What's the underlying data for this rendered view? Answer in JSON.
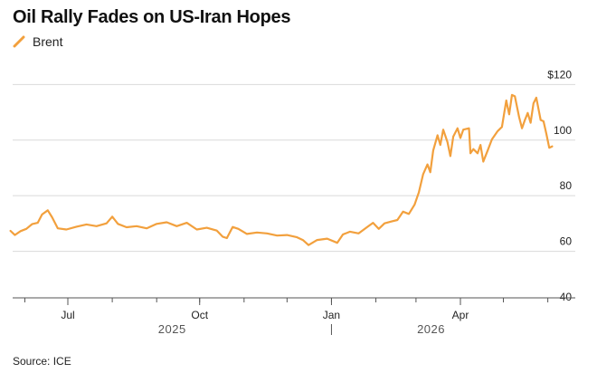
{
  "title": "Oil Rally Fades on US-Iran Hopes",
  "source": "Source: ICE",
  "colors": {
    "series": "#f2a03d",
    "grid": "#d9d9d9",
    "axis": "#555555"
  },
  "chart_data": {
    "type": "line",
    "title": "Oil Rally Fades on US-Iran Hopes",
    "xlabel": "",
    "ylabel": "",
    "ylim": [
      40,
      125
    ],
    "grid": true,
    "legend": "top-left",
    "y_ticks": [
      {
        "value": 120,
        "label": "$120"
      },
      {
        "value": 100,
        "label": "100"
      },
      {
        "value": 80,
        "label": "80"
      },
      {
        "value": 60,
        "label": "60"
      },
      {
        "value": 40,
        "label": "40"
      }
    ],
    "x_ticks": [
      {
        "date": "2025-07-01",
        "label": "Jul"
      },
      {
        "date": "2025-10-01",
        "label": "Oct"
      },
      {
        "date": "2026-01-01",
        "label": "Jan"
      },
      {
        "date": "2026-04-01",
        "label": "Apr"
      }
    ],
    "year_labels": [
      {
        "year": "2025",
        "from": "2025-05-20",
        "to": "2026-01-01"
      },
      {
        "year": "2026",
        "from": "2026-01-01",
        "to": "2026-05-20"
      }
    ],
    "x_range": [
      "2025-05-20",
      "2026-06-12"
    ],
    "series": [
      {
        "name": "Brent",
        "points": [
          [
            "2025-05-22",
            64.1
          ],
          [
            "2025-05-25",
            62.6
          ],
          [
            "2025-05-29",
            64.0
          ],
          [
            "2025-06-02",
            64.8
          ],
          [
            "2025-06-06",
            66.5
          ],
          [
            "2025-06-10",
            67.0
          ],
          [
            "2025-06-13",
            70.0
          ],
          [
            "2025-06-17",
            71.5
          ],
          [
            "2025-06-20",
            69.0
          ],
          [
            "2025-06-24",
            65.0
          ],
          [
            "2025-06-30",
            64.6
          ],
          [
            "2025-07-07",
            65.6
          ],
          [
            "2025-07-14",
            66.4
          ],
          [
            "2025-07-21",
            65.8
          ],
          [
            "2025-07-28",
            66.8
          ],
          [
            "2025-08-01",
            69.2
          ],
          [
            "2025-08-05",
            66.6
          ],
          [
            "2025-08-11",
            65.4
          ],
          [
            "2025-08-18",
            65.8
          ],
          [
            "2025-08-25",
            65.0
          ],
          [
            "2025-09-01",
            66.6
          ],
          [
            "2025-09-08",
            67.2
          ],
          [
            "2025-09-15",
            65.8
          ],
          [
            "2025-09-22",
            67.0
          ],
          [
            "2025-09-29",
            64.6
          ],
          [
            "2025-10-06",
            65.2
          ],
          [
            "2025-10-13",
            64.2
          ],
          [
            "2025-10-17",
            62.0
          ],
          [
            "2025-10-20",
            61.5
          ],
          [
            "2025-10-24",
            65.5
          ],
          [
            "2025-10-28",
            64.8
          ],
          [
            "2025-11-03",
            63.0
          ],
          [
            "2025-11-10",
            63.5
          ],
          [
            "2025-11-17",
            63.2
          ],
          [
            "2025-11-24",
            62.4
          ],
          [
            "2025-12-01",
            62.6
          ],
          [
            "2025-12-08",
            61.8
          ],
          [
            "2025-12-12",
            60.8
          ],
          [
            "2025-12-16",
            59.0
          ],
          [
            "2025-12-22",
            60.8
          ],
          [
            "2025-12-29",
            61.3
          ],
          [
            "2026-01-05",
            59.8
          ],
          [
            "2026-01-09",
            62.8
          ],
          [
            "2026-01-14",
            63.8
          ],
          [
            "2026-01-20",
            63.2
          ],
          [
            "2026-01-26",
            65.5
          ],
          [
            "2026-01-30",
            67.0
          ],
          [
            "2026-02-03",
            64.8
          ],
          [
            "2026-02-07",
            66.8
          ],
          [
            "2026-02-12",
            67.5
          ],
          [
            "2026-02-16",
            68.0
          ],
          [
            "2026-02-20",
            71.0
          ],
          [
            "2026-02-24",
            70.2
          ],
          [
            "2026-02-28",
            73.5
          ],
          [
            "2026-03-03",
            78.0
          ],
          [
            "2026-03-06",
            84.5
          ],
          [
            "2026-03-09",
            88.0
          ],
          [
            "2026-03-11",
            85.2
          ],
          [
            "2026-03-13",
            93.0
          ],
          [
            "2026-03-16",
            98.5
          ],
          [
            "2026-03-18",
            95.0
          ],
          [
            "2026-03-20",
            100.5
          ],
          [
            "2026-03-23",
            96.0
          ],
          [
            "2026-03-25",
            91.0
          ],
          [
            "2026-03-27",
            98.0
          ],
          [
            "2026-03-30",
            101.0
          ],
          [
            "2026-04-01",
            97.5
          ],
          [
            "2026-04-03",
            100.5
          ],
          [
            "2026-04-07",
            101.0
          ],
          [
            "2026-04-08",
            92.0
          ],
          [
            "2026-04-10",
            93.5
          ],
          [
            "2026-04-13",
            92.0
          ],
          [
            "2026-04-15",
            95.0
          ],
          [
            "2026-04-17",
            89.0
          ],
          [
            "2026-04-20",
            93.0
          ],
          [
            "2026-04-23",
            97.0
          ],
          [
            "2026-04-27",
            100.0
          ],
          [
            "2026-04-30",
            101.5
          ],
          [
            "2026-05-03",
            111.0
          ],
          [
            "2026-05-05",
            106.0
          ],
          [
            "2026-05-07",
            113.0
          ],
          [
            "2026-05-09",
            112.5
          ],
          [
            "2026-05-12",
            105.0
          ],
          [
            "2026-05-14",
            101.0
          ],
          [
            "2026-05-16",
            104.0
          ],
          [
            "2026-05-18",
            106.5
          ],
          [
            "2026-05-20",
            103.0
          ],
          [
            "2026-05-22",
            110.0
          ],
          [
            "2026-05-24",
            112.0
          ],
          [
            "2026-05-27",
            104.0
          ],
          [
            "2026-05-29",
            103.5
          ],
          [
            "2026-05-31",
            99.0
          ],
          [
            "2026-06-02",
            94.0
          ],
          [
            "2026-06-04",
            94.5
          ]
        ]
      }
    ]
  }
}
